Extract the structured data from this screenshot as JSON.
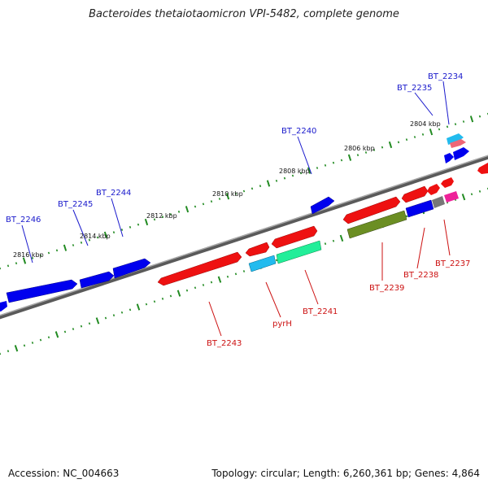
{
  "title": "Bacteroides thetaiotaomicron VPI-5482, complete genome",
  "footer": {
    "accession": "Accession: NC_004663",
    "summary": "Topology: circular; Length: 6,260,361 bp; Genes: 4,864"
  },
  "colors": {
    "forward_label": "#1a1acc",
    "reverse_label": "#cc1111",
    "backbone": "#808080",
    "tick": "#228b22",
    "forward_gene": "#0000ee",
    "reverse_gene": "#ee1111",
    "cyan_feature": "#22bbee",
    "green_feature": "#22ee99",
    "olive_feature": "#6b8e23",
    "gray_feature": "#777777",
    "pink_feature": "#ee2299",
    "salmon_feature": "#ee6677"
  },
  "scale_labels": [
    "2804 kbp",
    "2806 kbp",
    "2808 kbp",
    "2810 kbp",
    "2812 kbp",
    "2814 kbp",
    "2816 kbp"
  ],
  "forward_genes": [
    "BT_2234",
    "BT_2235",
    "BT_2240",
    "BT_2244",
    "BT_2245",
    "BT_2246"
  ],
  "reverse_genes": [
    "BT_2237",
    "BT_2238",
    "BT_2239",
    "BT_2241",
    "pyrH",
    "BT_2243"
  ]
}
